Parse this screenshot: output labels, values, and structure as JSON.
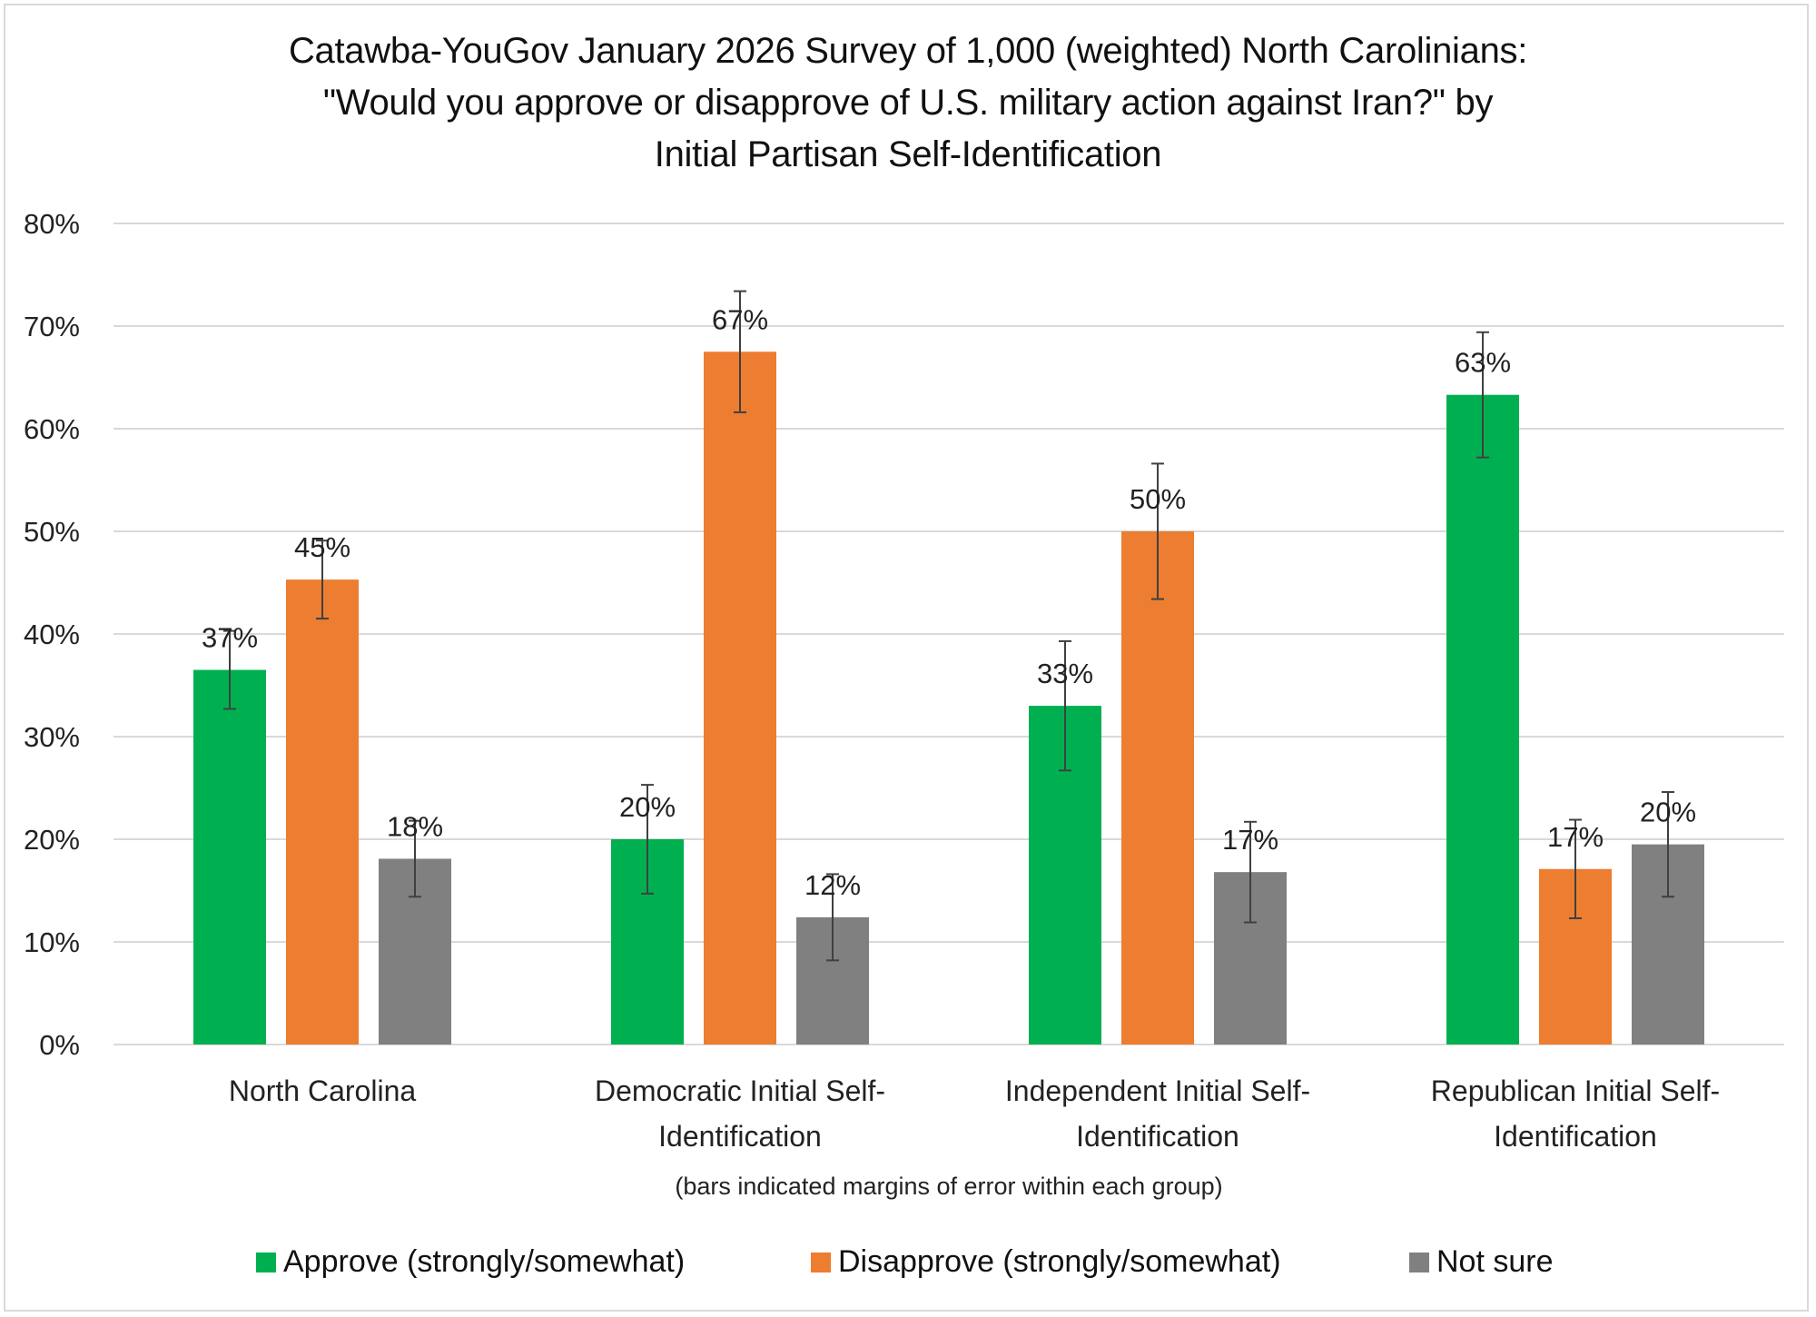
{
  "chart_data": {
    "type": "bar",
    "title_lines": [
      "Catawba-YouGov January 2026 Survey of 1,000 (weighted) North Carolinians:",
      "\"Would you approve or disapprove of U.S. military action against Iran?\" by",
      "Initial Partisan Self-Identification"
    ],
    "categories": [
      [
        "North Carolina"
      ],
      [
        "Democratic Initial Self-",
        "Identification"
      ],
      [
        "Independent Initial Self-",
        "Identification"
      ],
      [
        "Republican Initial Self-",
        "Identification"
      ]
    ],
    "series": [
      {
        "name": "Approve (strongly/somewhat)",
        "color": "#00B050",
        "values": [
          36.5,
          20,
          33,
          63.3
        ],
        "labels": [
          "37%",
          "20%",
          "33%",
          "63%"
        ],
        "error_margin": [
          3.8,
          5.3,
          6.3,
          6.1
        ]
      },
      {
        "name": "Disapprove (strongly/somewhat)",
        "color": "#ED7D31",
        "values": [
          45.3,
          67.5,
          50,
          17.1
        ],
        "labels": [
          "45%",
          "67%",
          "50%",
          "17%"
        ],
        "error_margin": [
          3.8,
          5.9,
          6.6,
          4.8
        ]
      },
      {
        "name": "Not sure",
        "color": "#808080",
        "values": [
          18.1,
          12.4,
          16.8,
          19.5
        ],
        "labels": [
          "18%",
          "12%",
          "17%",
          "20%"
        ],
        "error_margin": [
          3.7,
          4.2,
          4.9,
          5.1
        ]
      }
    ],
    "ylim": [
      0,
      80
    ],
    "yticks": [
      0,
      10,
      20,
      30,
      40,
      50,
      60,
      70,
      80
    ],
    "ytick_labels": [
      "0%",
      "10%",
      "20%",
      "30%",
      "40%",
      "50%",
      "60%",
      "70%",
      "80%"
    ],
    "xlabel_note": "(bars indicated margins of error within each group)",
    "ylabel": "",
    "grid": true,
    "legend_position": "bottom"
  }
}
